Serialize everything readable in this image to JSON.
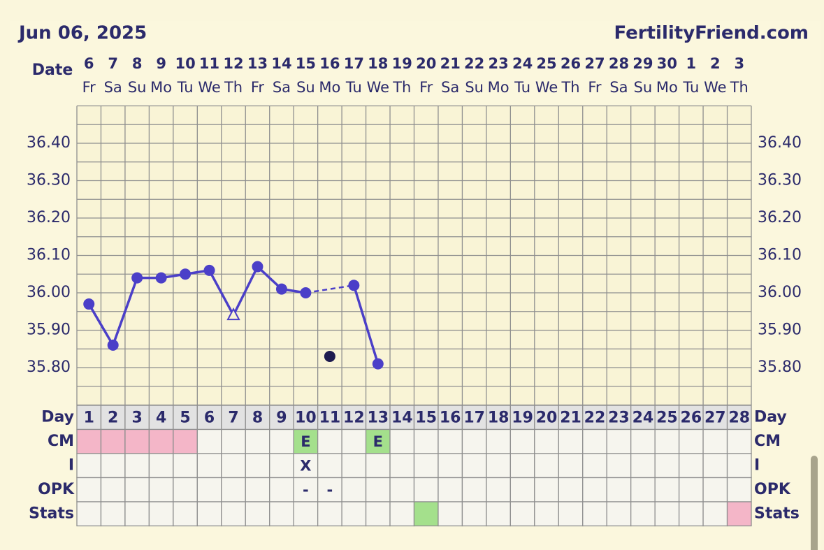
{
  "header": {
    "date": "Jun 06, 2025",
    "site": "FertilityFriend.com"
  },
  "chart_data": {
    "type": "line",
    "date_label": "Date",
    "dates": [
      6,
      7,
      8,
      9,
      10,
      11,
      12,
      13,
      14,
      15,
      16,
      17,
      18,
      19,
      20,
      21,
      22,
      23,
      24,
      25,
      26,
      27,
      28,
      29,
      30,
      1,
      2,
      3
    ],
    "weekdays": [
      "Fr",
      "Sa",
      "Su",
      "Mo",
      "Tu",
      "We",
      "Th",
      "Fr",
      "Sa",
      "Su",
      "Mo",
      "Tu",
      "We",
      "Th",
      "Fr",
      "Sa",
      "Su",
      "Mo",
      "Tu",
      "We",
      "Th",
      "Fr",
      "Sa",
      "Su",
      "Mo",
      "Tu",
      "We",
      "Th"
    ],
    "ylim": [
      35.7,
      36.5
    ],
    "yticks": [
      {
        "value": 35.8,
        "label": "35.80"
      },
      {
        "value": 35.9,
        "label": "35.90"
      },
      {
        "value": 36.0,
        "label": "36.00"
      },
      {
        "value": 36.1,
        "label": "36.10"
      },
      {
        "value": 36.2,
        "label": "36.20"
      },
      {
        "value": 36.3,
        "label": "36.30"
      },
      {
        "value": 36.4,
        "label": "36.40"
      }
    ],
    "grid_yticks": [
      35.7,
      35.75,
      35.8,
      35.85,
      35.9,
      35.95,
      36.0,
      36.05,
      36.1,
      36.15,
      36.2,
      36.25,
      36.3,
      36.35,
      36.4,
      36.45,
      36.5
    ],
    "grid": true,
    "open_triangle_day": 7,
    "series": [
      {
        "color": "#4b3fc8",
        "values": [
          35.97,
          35.86,
          36.04,
          36.04,
          36.05,
          36.06,
          35.94,
          36.07,
          36.01,
          36.0,
          null,
          36.02,
          35.81,
          null,
          null,
          null,
          null,
          null,
          null,
          null,
          null,
          null,
          null,
          null,
          null,
          null,
          null,
          null
        ]
      },
      {
        "color": "#1e1b4f",
        "values": [
          null,
          null,
          null,
          null,
          null,
          null,
          null,
          null,
          null,
          null,
          35.83,
          null,
          null,
          null,
          null,
          null,
          null,
          null,
          null,
          null,
          null,
          null,
          null,
          null,
          null,
          null,
          null,
          null
        ]
      }
    ],
    "table": {
      "rows": [
        {
          "label": "Day",
          "cells": [
            1,
            2,
            3,
            4,
            5,
            6,
            7,
            8,
            9,
            10,
            11,
            12,
            13,
            14,
            15,
            16,
            17,
            18,
            19,
            20,
            21,
            22,
            23,
            24,
            25,
            26,
            27,
            28
          ]
        },
        {
          "label": "CM",
          "cells": [
            null,
            null,
            null,
            null,
            null,
            null,
            null,
            null,
            null,
            "E",
            null,
            null,
            "E",
            null,
            null,
            null,
            null,
            null,
            null,
            null,
            null,
            null,
            null,
            null,
            null,
            null,
            null,
            null
          ],
          "colors": [
            "#f4b6c8",
            "#f4b6c8",
            "#f4b6c8",
            "#f4b6c8",
            "#f4b6c8",
            null,
            null,
            null,
            null,
            "#a4e08c",
            null,
            null,
            "#a4e08c",
            null,
            null,
            null,
            null,
            null,
            null,
            null,
            null,
            null,
            null,
            null,
            null,
            null,
            null,
            null
          ]
        },
        {
          "label": "I",
          "cells": [
            null,
            null,
            null,
            null,
            null,
            null,
            null,
            null,
            null,
            "X",
            null,
            null,
            null,
            null,
            null,
            null,
            null,
            null,
            null,
            null,
            null,
            null,
            null,
            null,
            null,
            null,
            null,
            null
          ]
        },
        {
          "label": "OPK",
          "cells": [
            null,
            null,
            null,
            null,
            null,
            null,
            null,
            null,
            null,
            "-",
            "-",
            null,
            null,
            null,
            null,
            null,
            null,
            null,
            null,
            null,
            null,
            null,
            null,
            null,
            null,
            null,
            null,
            null
          ]
        },
        {
          "label": "Stats",
          "cells": [
            null,
            null,
            null,
            null,
            null,
            null,
            null,
            null,
            null,
            null,
            null,
            null,
            null,
            null,
            null,
            null,
            null,
            null,
            null,
            null,
            null,
            null,
            null,
            null,
            null,
            null,
            null,
            null
          ],
          "colors": [
            null,
            null,
            null,
            null,
            null,
            null,
            null,
            null,
            null,
            null,
            null,
            null,
            null,
            null,
            "#a4e08c",
            null,
            null,
            null,
            null,
            null,
            null,
            null,
            null,
            null,
            null,
            null,
            null,
            "#f4b6c8"
          ]
        }
      ]
    }
  }
}
